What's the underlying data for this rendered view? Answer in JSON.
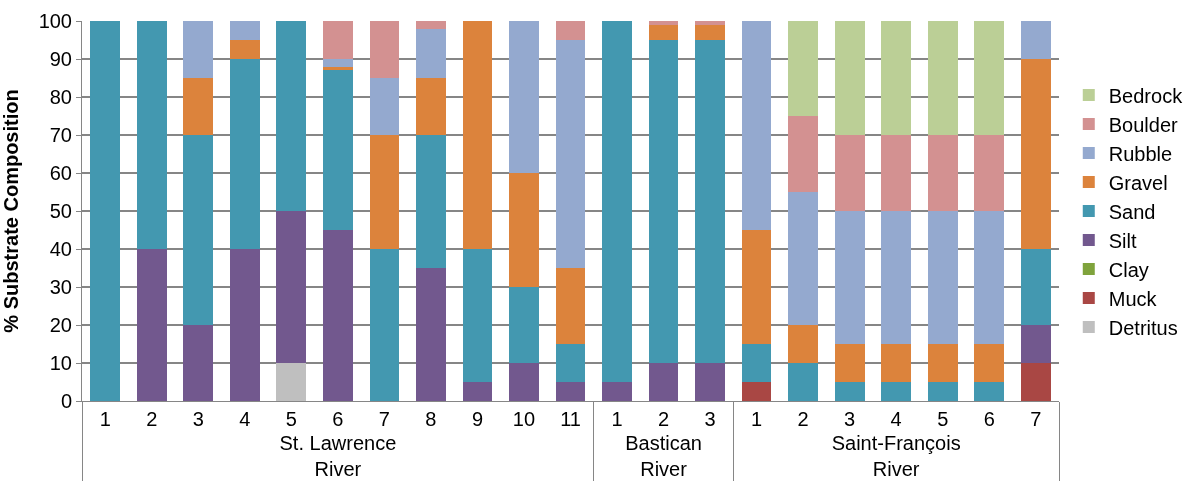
{
  "chart_data": {
    "type": "bar",
    "stacked": true,
    "ylabel": "% Substrate Composition",
    "categories": [
      "1",
      "2",
      "3",
      "4",
      "5",
      "6",
      "7",
      "8",
      "9",
      "10",
      "11",
      "1",
      "2",
      "3",
      "1",
      "2",
      "3",
      "4",
      "5",
      "6",
      "7"
    ],
    "annotations": [
      "St. Lawrence\nRiver",
      "Bastican\nRiver",
      "Saint-François\nRiver"
    ],
    "ylim": [
      0,
      100
    ],
    "yticks": [
      0,
      10,
      20,
      30,
      40,
      50,
      60,
      70,
      80,
      90,
      100
    ],
    "grid": "y",
    "legend": "right",
    "series": [
      {
        "name": "Detritus",
        "color": "#bfbfbf",
        "values": [
          0,
          0,
          0,
          0,
          10,
          0,
          0,
          0,
          0,
          0,
          0,
          0,
          0,
          0,
          0,
          0,
          0,
          0,
          0,
          0,
          0
        ]
      },
      {
        "name": "Muck",
        "color": "#a94744",
        "values": [
          0,
          0,
          0,
          0,
          0,
          0,
          0,
          0,
          0,
          0,
          0,
          0,
          0,
          0,
          5,
          0,
          0,
          0,
          0,
          0,
          10
        ]
      },
      {
        "name": "Clay",
        "color": "#7fa33c",
        "values": [
          0,
          0,
          0,
          0,
          0,
          0,
          0,
          0,
          0,
          0,
          0,
          0,
          0,
          0,
          0,
          0,
          0,
          0,
          0,
          0,
          0
        ]
      },
      {
        "name": "Silt",
        "color": "#72588e",
        "values": [
          0,
          40,
          20,
          40,
          40,
          45,
          0,
          35,
          5,
          10,
          5,
          5,
          10,
          10,
          0,
          0,
          0,
          0,
          0,
          0,
          10
        ]
      },
      {
        "name": "Sand",
        "color": "#4398b0",
        "values": [
          100,
          60,
          50,
          50,
          50,
          42,
          40,
          35,
          35,
          20,
          10,
          95,
          85,
          85,
          10,
          10,
          5,
          5,
          5,
          5,
          20
        ]
      },
      {
        "name": "Gravel",
        "color": "#dc833c",
        "values": [
          0,
          0,
          15,
          5,
          0,
          1,
          30,
          15,
          60,
          30,
          20,
          0,
          4,
          4,
          30,
          10,
          10,
          10,
          10,
          10,
          50
        ]
      },
      {
        "name": "Rubble",
        "color": "#94a9cf",
        "values": [
          0,
          0,
          15,
          5,
          0,
          2,
          15,
          13,
          0,
          40,
          60,
          0,
          0,
          0,
          55,
          35,
          35,
          35,
          35,
          35,
          10
        ]
      },
      {
        "name": "Boulder",
        "color": "#d39191",
        "values": [
          0,
          0,
          0,
          0,
          0,
          10,
          15,
          2,
          0,
          0,
          5,
          0,
          1,
          1,
          0,
          20,
          20,
          20,
          20,
          20,
          0
        ]
      },
      {
        "name": "Bedrock",
        "color": "#bbcf96",
        "values": [
          0,
          0,
          0,
          0,
          0,
          0,
          0,
          0,
          0,
          0,
          0,
          0,
          0,
          0,
          0,
          25,
          30,
          30,
          30,
          30,
          0
        ]
      }
    ]
  }
}
